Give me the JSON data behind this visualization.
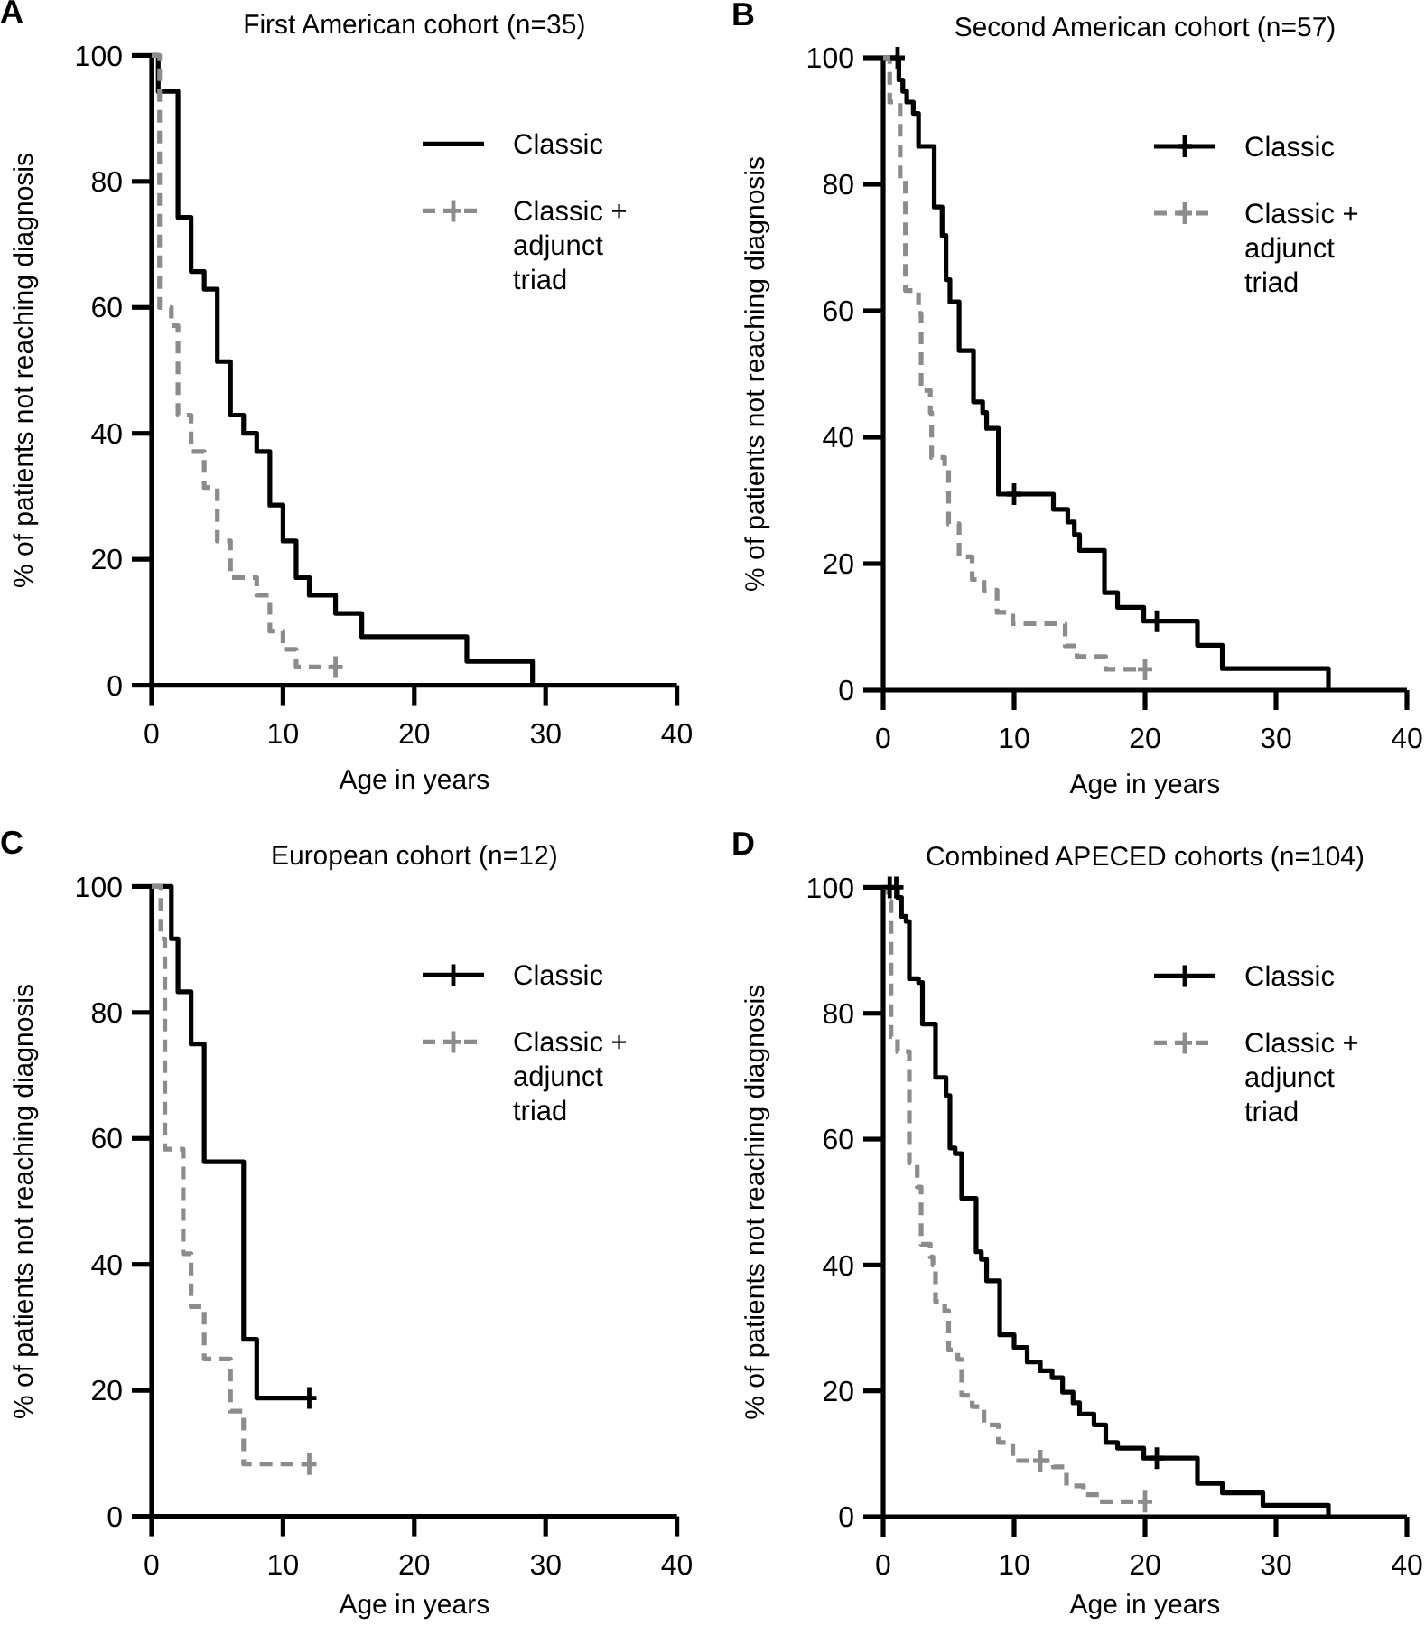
{
  "chart_data": [
    {
      "type": "step",
      "title": "First American cohort (n=35)",
      "annotations": [
        "A"
      ],
      "xlabel": "Age in years",
      "ylabel": "% of patients not reaching diagnosis",
      "xlim": [
        0,
        40
      ],
      "ylim": [
        0,
        100
      ],
      "xticks": [
        0,
        10,
        20,
        30,
        40
      ],
      "yticks": [
        0,
        20,
        40,
        60,
        80,
        100
      ],
      "legend": "top right",
      "series": [
        {
          "name": "Classic",
          "color": "#000000",
          "line_style": "solid",
          "x": [
            0,
            0.5,
            2,
            3,
            4,
            5,
            6,
            7,
            8,
            9,
            10,
            11,
            12,
            14,
            16,
            24,
            29
          ],
          "values": [
            100,
            94.3,
            74.3,
            65.7,
            62.9,
            51.4,
            42.9,
            40,
            37.1,
            28.6,
            22.9,
            17.1,
            14.3,
            11.4,
            7.7,
            3.8,
            0
          ]
        },
        {
          "name": "Classic + adjunct triad",
          "color": "#8c8c8c",
          "line_style": "dashed",
          "x": [
            0,
            0.6,
            1.5,
            2,
            3,
            4,
            5,
            6,
            8,
            9,
            10,
            11,
            14
          ],
          "values": [
            100,
            60,
            57.1,
            42.9,
            37.1,
            31.4,
            22.9,
            17.1,
            14.3,
            8.6,
            5.7,
            2.9,
            2.9
          ]
        },
        {
          "type": "scatter",
          "color": "#8c8c8c",
          "marker": "cross",
          "x": [
            14
          ],
          "values": [
            2.9
          ]
        }
      ]
    },
    {
      "type": "step",
      "title": "Second American cohort (n=57)",
      "annotations": [
        "B"
      ],
      "xlabel": "Age in years",
      "ylabel": "% of patients not reaching diagnosis",
      "xlim": [
        0,
        40
      ],
      "ylim": [
        0,
        100
      ],
      "xticks": [
        0,
        10,
        20,
        30,
        40
      ],
      "yticks": [
        0,
        20,
        40,
        60,
        80,
        100
      ],
      "legend": "top right",
      "series": [
        {
          "name": "Classic",
          "color": "#000000",
          "line_style": "solid",
          "x": [
            0,
            1.2,
            1.5,
            1.8,
            2.3,
            2.7,
            3.9,
            4.5,
            4.8,
            5.1,
            5.8,
            6.9,
            7.6,
            7.9,
            8.8,
            13,
            14.1,
            14.6,
            15,
            16.9,
            17.9,
            19.9,
            24,
            25.9,
            34
          ],
          "values": [
            100,
            96.5,
            94.7,
            93,
            91.2,
            86,
            76.4,
            71.9,
            64.9,
            61.4,
            53.7,
            45.6,
            43.9,
            41.4,
            31,
            28.6,
            26.6,
            24.6,
            22.1,
            15.4,
            13.1,
            10.9,
            7.1,
            3.4,
            0
          ]
        },
        {
          "name": "Classic + adjunct triad",
          "color": "#8c8c8c",
          "line_style": "dashed",
          "x": [
            0,
            0.5,
            1.3,
            1.7,
            2.7,
            2.9,
            3.6,
            3.7,
            4.7,
            5,
            5.8,
            6.8,
            7.7,
            8.7,
            9.9,
            13.9,
            14.8,
            17,
            20
          ],
          "values": [
            100,
            93,
            80.7,
            63.2,
            59.6,
            47.4,
            43.9,
            36.8,
            35.1,
            26.3,
            21.1,
            17.5,
            15.8,
            12.3,
            10.5,
            7,
            5.3,
            3.3,
            3.3
          ]
        },
        {
          "type": "scatter",
          "color": "#000000",
          "marker": "cross",
          "x": [
            1.1,
            10,
            20.9
          ],
          "values": [
            100,
            31,
            10.9
          ]
        },
        {
          "type": "scatter",
          "color": "#8c8c8c",
          "marker": "cross",
          "x": [
            20
          ],
          "values": [
            3.3
          ]
        }
      ]
    },
    {
      "type": "step",
      "title": "European cohort (n=12)",
      "annotations": [
        "C"
      ],
      "xlabel": "Age in years",
      "ylabel": "% of patients not reaching diagnosis",
      "xlim": [
        0,
        40
      ],
      "ylim": [
        0,
        100
      ],
      "xticks": [
        0,
        10,
        20,
        30,
        40
      ],
      "yticks": [
        0,
        20,
        40,
        60,
        80,
        100
      ],
      "legend": "top right",
      "series": [
        {
          "name": "Classic",
          "color": "#000000",
          "line_style": "solid",
          "x": [
            0,
            1.5,
            2,
            3,
            4,
            7,
            8,
            12
          ],
          "values": [
            100,
            91.7,
            83.3,
            75,
            56.3,
            28.1,
            18.8,
            18.8
          ]
        },
        {
          "name": "Classic + adjunct triad",
          "color": "#8c8c8c",
          "line_style": "dashed",
          "x": [
            0,
            0.7,
            1,
            2.4,
            3,
            4,
            6,
            7,
            12
          ],
          "values": [
            100,
            91.7,
            58.3,
            41.7,
            33.3,
            25,
            16.7,
            8.3,
            8.3
          ]
        },
        {
          "type": "scatter",
          "color": "#000000",
          "marker": "cross",
          "x": [
            12
          ],
          "values": [
            18.8
          ]
        },
        {
          "type": "scatter",
          "color": "#8c8c8c",
          "marker": "cross",
          "x": [
            12
          ],
          "values": [
            8.3
          ]
        }
      ]
    },
    {
      "type": "step",
      "title": "Combined APECED cohorts (n=104)",
      "annotations": [
        "D"
      ],
      "xlabel": "Age in years",
      "ylabel": "% of patients not reaching diagnosis",
      "xlim": [
        0,
        40
      ],
      "ylim": [
        0,
        100
      ],
      "xticks": [
        0,
        10,
        20,
        30,
        40
      ],
      "yticks": [
        0,
        20,
        40,
        60,
        80,
        100
      ],
      "legend": "top right",
      "series": [
        {
          "name": "Classic",
          "color": "#000000",
          "line_style": "solid",
          "x": [
            0,
            1.1,
            1.4,
            1.75,
            2,
            2.7,
            3,
            4,
            4.8,
            5.1,
            5.5,
            6,
            7.1,
            7.5,
            7.9,
            8.9,
            10,
            11,
            12,
            12.9,
            13.7,
            14.5,
            15,
            16.1,
            17,
            17.9,
            19.9,
            24,
            25.9,
            29,
            34
          ],
          "values": [
            100,
            98.4,
            95.4,
            94.6,
            85.5,
            84.9,
            78.3,
            69.8,
            66.9,
            58.6,
            57.7,
            50.6,
            42.1,
            40.9,
            37.5,
            28.9,
            26.9,
            24.6,
            23.2,
            22.1,
            19.8,
            18.1,
            16.3,
            14.6,
            11.8,
            10.9,
            9.3,
            5.3,
            3.8,
            1.8,
            0
          ]
        },
        {
          "name": "Classic + adjunct triad",
          "color": "#8c8c8c",
          "line_style": "dashed",
          "x": [
            0,
            0.4,
            0.6,
            1.1,
            2,
            2.6,
            2.9,
            3.6,
            3.8,
            4,
            4.7,
            5,
            5.7,
            6,
            6.8,
            7.7,
            8.8,
            9.9,
            13,
            14,
            15.3,
            16.5,
            20
          ],
          "values": [
            100,
            97.8,
            76.3,
            73.9,
            56.2,
            52.4,
            43.3,
            41.3,
            40,
            34.2,
            32.7,
            26.5,
            25,
            19.3,
            17.5,
            14.6,
            11.8,
            8.9,
            7.9,
            4.9,
            3.5,
            2.4,
            2.4
          ]
        },
        {
          "type": "scatter",
          "color": "#000000",
          "marker": "cross",
          "x": [
            0.5,
            1,
            20.9
          ],
          "values": [
            100,
            100,
            9.3
          ]
        },
        {
          "type": "scatter",
          "color": "#8c8c8c",
          "marker": "cross",
          "x": [
            12,
            20
          ],
          "values": [
            8.9,
            2.4
          ]
        }
      ]
    }
  ]
}
